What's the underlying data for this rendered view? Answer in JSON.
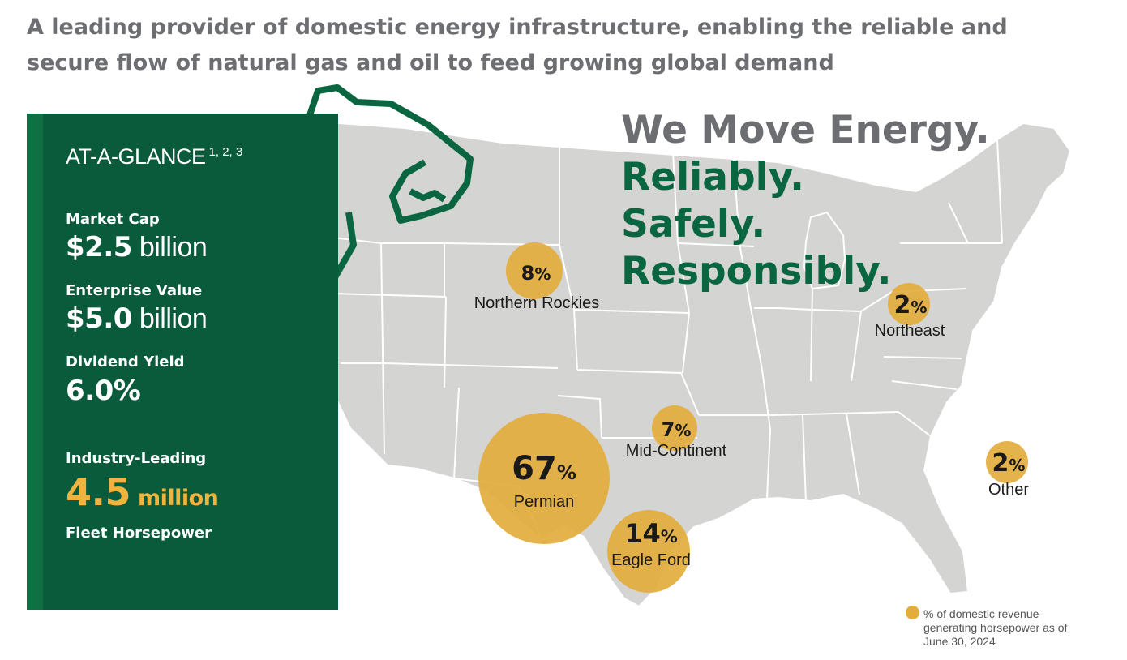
{
  "headline": "A leading provider of domestic energy infrastructure, enabling the reliable and secure flow of natural gas and oil to feed growing global demand",
  "tagline": {
    "line1": "We Move Energy.",
    "line2": "Reliably.",
    "line3": "Safely.",
    "line4": "Responsibly."
  },
  "panel": {
    "title": "AT-A-GLANCE",
    "footnotes": "1, 2, 3",
    "market_cap_label": "Market Cap",
    "market_cap_value": "$2.5",
    "market_cap_unit": "billion",
    "ev_label": "Enterprise Value",
    "ev_value": "$5.0",
    "ev_unit": "billion",
    "dividend_label": "Dividend Yield",
    "dividend_value": "6.0%",
    "hp_label": "Industry-Leading",
    "hp_value": "4.5",
    "hp_unit": "million",
    "hp_sublabel": "Fleet Horsepower"
  },
  "regions": [
    {
      "name": "Permian",
      "value": 67,
      "pct": "%"
    },
    {
      "name": "Eagle Ford",
      "value": 14,
      "pct": "%"
    },
    {
      "name": "Northern Rockies",
      "value": 8,
      "pct": "%"
    },
    {
      "name": "Mid-Continent",
      "value": 7,
      "pct": "%"
    },
    {
      "name": "Northeast",
      "value": 2,
      "pct": "%"
    },
    {
      "name": "Other",
      "value": 2,
      "pct": "%"
    }
  ],
  "legend": "% of domestic revenue-generating horsepower as of June 30, 2024",
  "colors": {
    "panel_green": "#0a5a3c",
    "accent_green": "#0a6640",
    "gold": "#e3ad3c",
    "map_gray": "#d4d4d2",
    "headline_gray": "#6d6e71"
  }
}
